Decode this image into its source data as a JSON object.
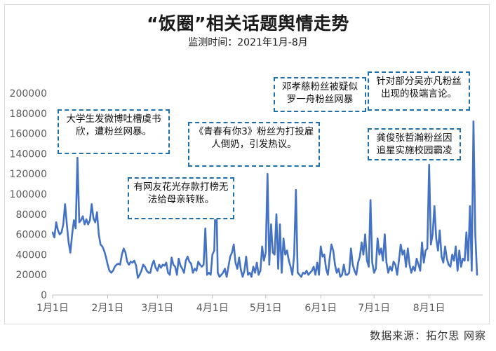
{
  "chart_data": {
    "type": "line",
    "title": "“饭圈”相关话题舆情走势",
    "subtitle": "监测时间：2021年1月-8月",
    "xlabel": "",
    "ylabel": "",
    "ylim": [
      0,
      200000
    ],
    "y_ticks": [
      "0",
      "20000",
      "40000",
      "60000",
      "80000",
      "100000",
      "120000",
      "140000",
      "160000",
      "180000",
      "200000"
    ],
    "x_ticks": [
      {
        "label": "1月1日",
        "day": 0
      },
      {
        "label": "2月1日",
        "day": 31
      },
      {
        "label": "3月1日",
        "day": 59
      },
      {
        "label": "4月1日",
        "day": 90
      },
      {
        "label": "5月1日",
        "day": 120
      },
      {
        "label": "6月1日",
        "day": 151
      },
      {
        "label": "7月1日",
        "day": 181
      },
      {
        "label": "8月1日",
        "day": 212
      }
    ],
    "grid": false,
    "series_color": "#4472c4",
    "series": [
      {
        "values": [
          62000,
          57000,
          72000,
          64000,
          60000,
          62000,
          70000,
          90000,
          70000,
          52000,
          42000,
          60000,
          74000,
          66000,
          136000,
          72000,
          74000,
          78000,
          70000,
          75000,
          70000,
          74000,
          90000,
          76000,
          72000,
          82000,
          60000,
          50000,
          48000,
          44000,
          38000,
          30000,
          24000,
          22000,
          24000,
          28000,
          30000,
          31000,
          30000,
          40000,
          46000,
          42000,
          33000,
          30000,
          33000,
          32000,
          34000,
          29000,
          17000,
          20000,
          24000,
          30000,
          28000,
          24000,
          22000,
          22000,
          30000,
          34000,
          27000,
          24000,
          30000,
          27000,
          30000,
          29000,
          32000,
          22000,
          20000,
          37000,
          30000,
          28000,
          20000,
          36000,
          29000,
          26000,
          22000,
          34000,
          38000,
          33000,
          31000,
          22000,
          26000,
          24000,
          33000,
          30000,
          28000,
          30000,
          66000,
          20000,
          22000,
          20000,
          40000,
          44000,
          114000,
          22000,
          18000,
          20000,
          22000,
          26000,
          18000,
          28000,
          38000,
          42000,
          50000,
          32000,
          26000,
          37000,
          25000,
          18000,
          24000,
          38000,
          20000,
          22000,
          18000,
          28000,
          22000,
          32000,
          20000,
          24000,
          48000,
          34000,
          42000,
          120000,
          30000,
          70000,
          42000,
          40000,
          80000,
          26000,
          70000,
          22000,
          56000,
          40000,
          44000,
          34000,
          28000,
          20000,
          40000,
          104000,
          22000,
          20000,
          18000,
          22000,
          21000,
          24000,
          20000,
          22000,
          24000,
          28000,
          20000,
          32000,
          20000,
          48000,
          38000,
          40000,
          26000,
          20000,
          36000,
          50000,
          44000,
          30000,
          22000,
          26000,
          18000,
          20000,
          30000,
          20000,
          20000,
          22000,
          46000,
          30000,
          24000,
          20000,
          32000,
          38000,
          52000,
          40000,
          60000,
          34000,
          28000,
          94000,
          32000,
          22000,
          26000,
          56000,
          40000,
          46000,
          34000,
          60000,
          32000,
          22000,
          28000,
          24000,
          33000,
          30000,
          20000,
          34000,
          50000,
          40000,
          44000,
          28000,
          46000,
          30000,
          22000,
          28000,
          24000,
          36000,
          30000,
          24000,
          52000,
          32000,
          44000,
          46000,
          129000,
          50000,
          60000,
          88000,
          56000,
          44000,
          64000,
          38000,
          32000,
          48000,
          36000,
          30000,
          28000,
          40000,
          34000,
          48000,
          24000,
          44000,
          28000,
          36000,
          34000,
          62000,
          34000,
          88000,
          24000,
          172000,
          60000,
          20000
        ]
      }
    ],
    "annotations": [
      "大学生发微博吐槽虞书欣，遭粉丝网暴。",
      "有网友花光存款打榜无法给母亲转账。",
      "《青春有你3》粉丝为打投雇人倒奶，引发热议。",
      "邓孝慈粉丝被疑似罗一舟粉丝网暴",
      "针对部分吴亦凡粉丝出现的极端言论。",
      "龚俊张哲瀚粉丝因追星实施校园霸凌"
    ],
    "source": "数据来源：拓尔思 网察"
  }
}
